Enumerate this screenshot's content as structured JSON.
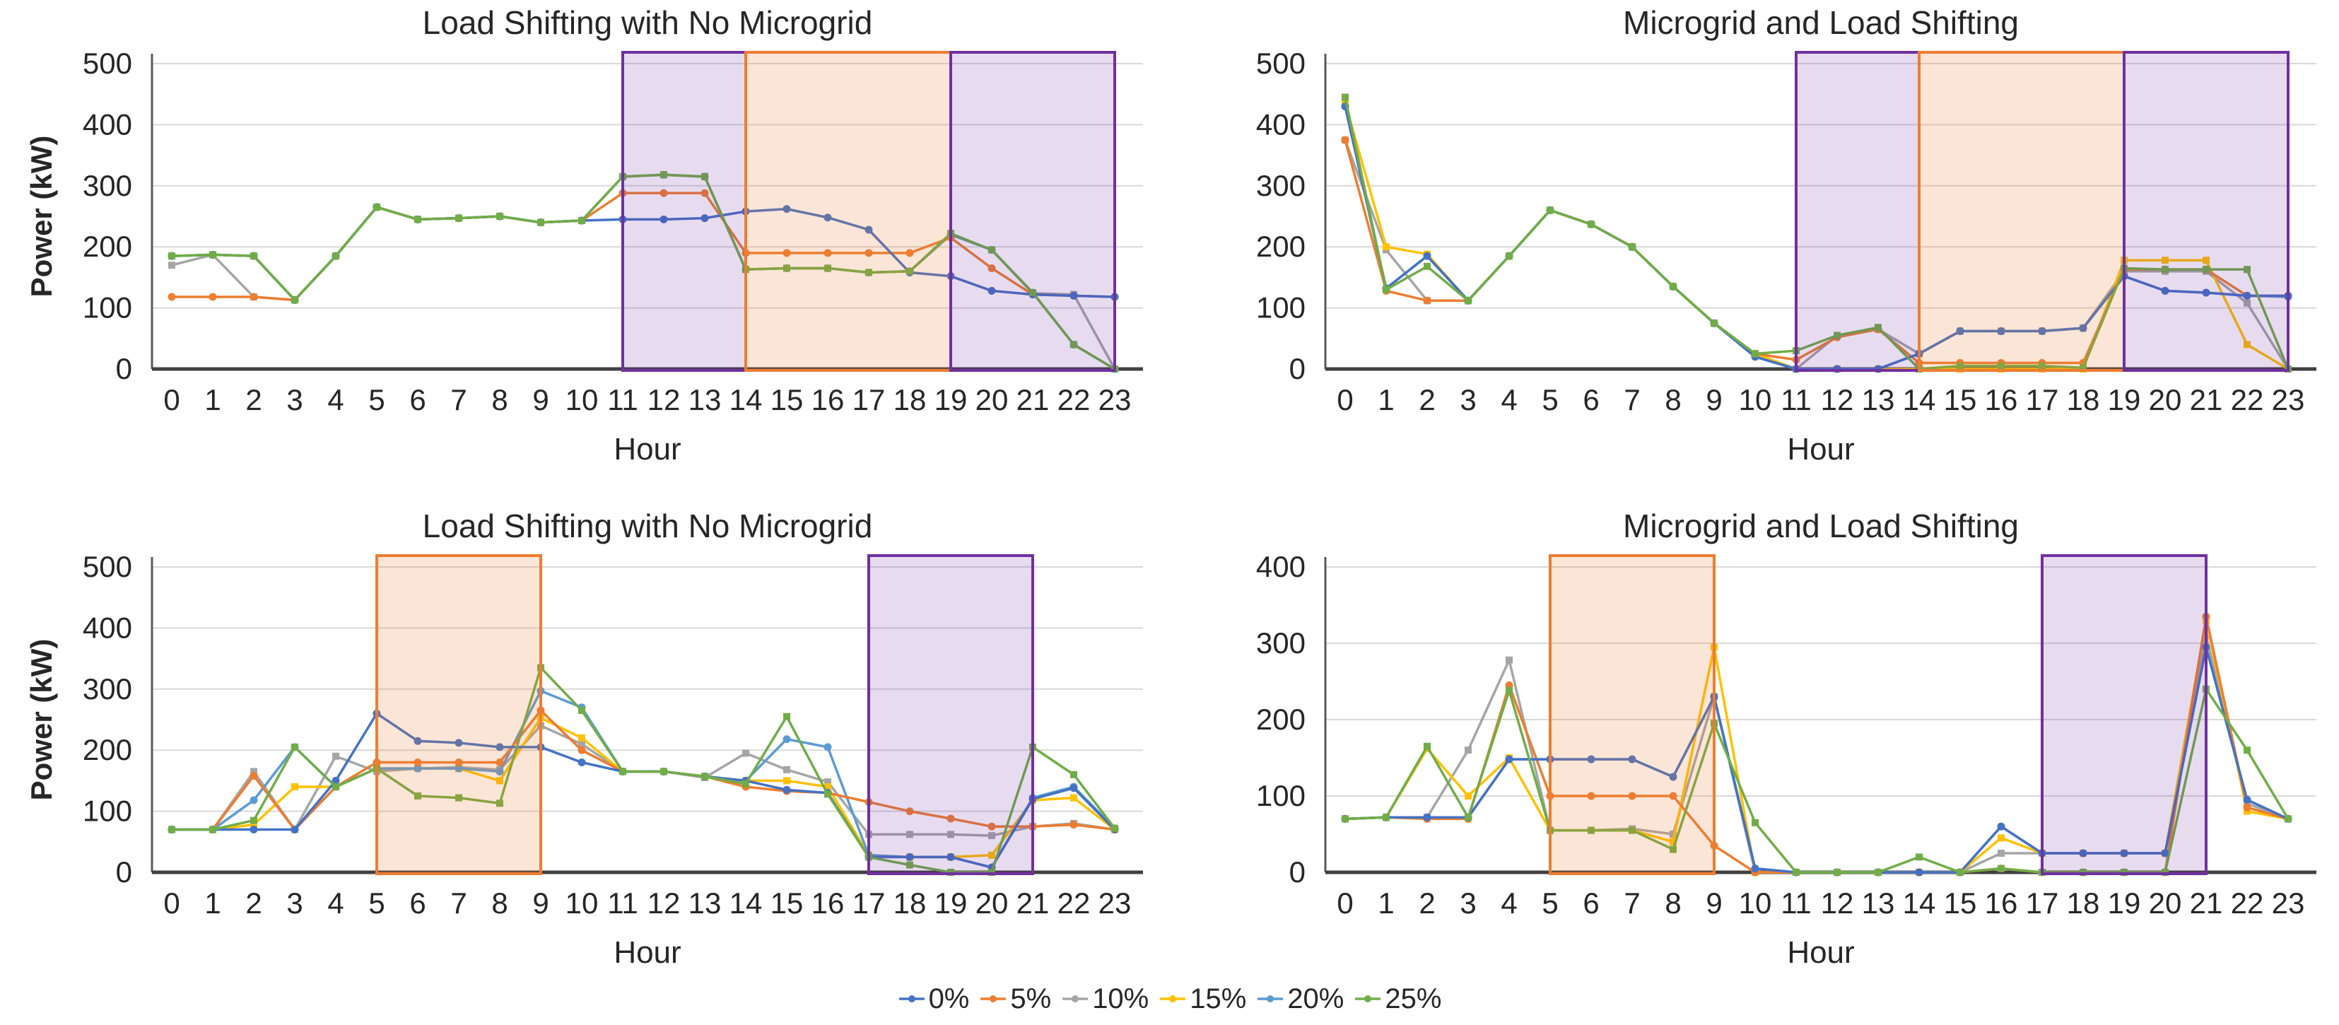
{
  "page": {
    "background": "#ffffff"
  },
  "legend": {
    "items": [
      {
        "label": "0%",
        "color": "#4472C4"
      },
      {
        "label": "5%",
        "color": "#ED7D31"
      },
      {
        "label": "10%",
        "color": "#A5A5A5"
      },
      {
        "label": "15%",
        "color": "#FFC000"
      },
      {
        "label": "20%",
        "color": "#5B9BD5"
      },
      {
        "label": "25%",
        "color": "#70AD47"
      }
    ]
  },
  "band_styles": {
    "purple": {
      "fill": "#7030A0",
      "fill_opacity": 0.17,
      "stroke": "#7030A0"
    },
    "orange": {
      "fill": "#ED7D31",
      "fill_opacity": 0.2,
      "stroke": "#ED7D31"
    }
  },
  "chart_data": [
    {
      "type": "line",
      "title": "Load Shifting with No Microgrid",
      "xlabel": "Hour",
      "ylabel": "Power (kW)",
      "ylim": [
        0,
        500
      ],
      "ytick_step": 100,
      "grid": true,
      "x": [
        0,
        1,
        2,
        3,
        4,
        5,
        6,
        7,
        8,
        9,
        10,
        11,
        12,
        13,
        14,
        15,
        16,
        17,
        18,
        19,
        20,
        21,
        22,
        23
      ],
      "bands": [
        {
          "x1": 11,
          "x2": 14,
          "kind": "purple"
        },
        {
          "x1": 14,
          "x2": 19,
          "kind": "orange"
        },
        {
          "x1": 19,
          "x2": 23,
          "kind": "purple"
        }
      ],
      "series": [
        {
          "name": "0%",
          "values": [
            185,
            187,
            185,
            113,
            185,
            265,
            245,
            247,
            250,
            240,
            243,
            245,
            245,
            247,
            258,
            262,
            248,
            228,
            158,
            152,
            128,
            122,
            120,
            118
          ]
        },
        {
          "name": "5%",
          "values": [
            118,
            118,
            118,
            113,
            185,
            265,
            245,
            247,
            250,
            240,
            243,
            288,
            288,
            288,
            190,
            190,
            190,
            190,
            190,
            215,
            165,
            122,
            120,
            118
          ]
        },
        {
          "name": "10%",
          "values": [
            170,
            187,
            118,
            113,
            185,
            265,
            245,
            247,
            250,
            240,
            243,
            315,
            318,
            315,
            163,
            165,
            165,
            158,
            160,
            220,
            195,
            124,
            122,
            0
          ]
        },
        {
          "name": "15%",
          "values": [
            185,
            187,
            185,
            113,
            185,
            265,
            245,
            247,
            250,
            240,
            243,
            315,
            318,
            315,
            163,
            165,
            165,
            158,
            160,
            220,
            195,
            125,
            40,
            0
          ]
        },
        {
          "name": "20%",
          "values": [
            185,
            187,
            185,
            113,
            185,
            265,
            245,
            247,
            250,
            240,
            243,
            315,
            318,
            315,
            163,
            165,
            165,
            158,
            160,
            220,
            195,
            125,
            40,
            0
          ]
        },
        {
          "name": "25%",
          "values": [
            185,
            187,
            185,
            113,
            185,
            265,
            245,
            247,
            250,
            240,
            243,
            315,
            318,
            315,
            163,
            165,
            165,
            158,
            160,
            222,
            195,
            125,
            40,
            0
          ]
        }
      ]
    },
    {
      "type": "line",
      "title": "Microgrid and Load Shifting",
      "xlabel": "Hour",
      "ylabel": "",
      "ylim": [
        0,
        500
      ],
      "ytick_step": 100,
      "grid": true,
      "x": [
        0,
        1,
        2,
        3,
        4,
        5,
        6,
        7,
        8,
        9,
        10,
        11,
        12,
        13,
        14,
        15,
        16,
        17,
        18,
        19,
        20,
        21,
        22,
        23
      ],
      "bands": [
        {
          "x1": 11,
          "x2": 14,
          "kind": "purple"
        },
        {
          "x1": 14,
          "x2": 19,
          "kind": "orange"
        },
        {
          "x1": 19,
          "x2": 23,
          "kind": "purple"
        }
      ],
      "series": [
        {
          "name": "0%",
          "values": [
            430,
            132,
            185,
            112,
            185,
            260,
            237,
            200,
            135,
            75,
            20,
            0,
            0,
            0,
            25,
            62,
            62,
            62,
            67,
            152,
            128,
            125,
            120,
            120
          ]
        },
        {
          "name": "5%",
          "values": [
            375,
            128,
            112,
            112,
            185,
            260,
            237,
            200,
            135,
            75,
            25,
            15,
            52,
            65,
            10,
            10,
            10,
            10,
            10,
            163,
            163,
            163,
            120,
            120
          ]
        },
        {
          "name": "10%",
          "values": [
            375,
            195,
            112,
            112,
            185,
            260,
            237,
            200,
            135,
            75,
            25,
            0,
            55,
            65,
            25,
            62,
            62,
            62,
            67,
            160,
            160,
            160,
            108,
            0
          ]
        },
        {
          "name": "15%",
          "values": [
            435,
            200,
            188,
            112,
            185,
            260,
            237,
            200,
            135,
            75,
            25,
            0,
            0,
            0,
            0,
            0,
            0,
            0,
            0,
            178,
            178,
            178,
            40,
            0
          ]
        },
        {
          "name": "20%",
          "values": [
            430,
            132,
            185,
            112,
            185,
            260,
            237,
            200,
            135,
            75,
            20,
            0,
            0,
            0,
            25,
            62,
            62,
            62,
            67,
            152,
            128,
            125,
            120,
            118
          ]
        },
        {
          "name": "25%",
          "values": [
            445,
            130,
            168,
            112,
            185,
            260,
            237,
            200,
            135,
            75,
            25,
            30,
            55,
            68,
            0,
            5,
            5,
            5,
            2,
            165,
            163,
            163,
            163,
            0
          ]
        }
      ]
    },
    {
      "type": "line",
      "title": "Load Shifting with No Microgrid",
      "xlabel": "Hour",
      "ylabel": "Power (kW)",
      "ylim": [
        0,
        500
      ],
      "ytick_step": 100,
      "grid": true,
      "x": [
        0,
        1,
        2,
        3,
        4,
        5,
        6,
        7,
        8,
        9,
        10,
        11,
        12,
        13,
        14,
        15,
        16,
        17,
        18,
        19,
        20,
        21,
        22,
        23
      ],
      "bands": [
        {
          "x1": 5,
          "x2": 9,
          "kind": "orange"
        },
        {
          "x1": 17,
          "x2": 21,
          "kind": "purple"
        }
      ],
      "series": [
        {
          "name": "0%",
          "values": [
            70,
            70,
            70,
            70,
            150,
            260,
            215,
            212,
            205,
            205,
            180,
            165,
            165,
            157,
            150,
            135,
            130,
            25,
            25,
            25,
            8,
            120,
            138,
            70
          ]
        },
        {
          "name": "5%",
          "values": [
            70,
            70,
            158,
            70,
            140,
            180,
            180,
            180,
            180,
            265,
            200,
            165,
            165,
            157,
            140,
            133,
            130,
            115,
            100,
            88,
            75,
            75,
            78,
            70
          ]
        },
        {
          "name": "10%",
          "values": [
            70,
            70,
            165,
            70,
            190,
            165,
            170,
            172,
            168,
            240,
            210,
            165,
            165,
            155,
            195,
            168,
            148,
            62,
            62,
            62,
            60,
            75,
            80,
            70
          ]
        },
        {
          "name": "15%",
          "values": [
            70,
            70,
            78,
            140,
            140,
            170,
            170,
            170,
            150,
            253,
            220,
            165,
            165,
            157,
            150,
            150,
            140,
            28,
            25,
            25,
            28,
            118,
            122,
            70
          ]
        },
        {
          "name": "20%",
          "values": [
            70,
            70,
            118,
            205,
            140,
            170,
            170,
            170,
            165,
            297,
            270,
            165,
            165,
            157,
            150,
            218,
            205,
            28,
            25,
            25,
            8,
            122,
            140,
            72
          ]
        },
        {
          "name": "25%",
          "values": [
            70,
            70,
            85,
            205,
            140,
            170,
            125,
            122,
            113,
            335,
            265,
            165,
            165,
            157,
            145,
            255,
            128,
            25,
            12,
            0,
            0,
            205,
            160,
            72
          ]
        }
      ]
    },
    {
      "type": "line",
      "title": "Microgrid and Load Shifting",
      "xlabel": "Hour",
      "ylabel": "",
      "ylim": [
        0,
        400
      ],
      "ytick_step": 100,
      "grid": true,
      "x": [
        0,
        1,
        2,
        3,
        4,
        5,
        6,
        7,
        8,
        9,
        10,
        11,
        12,
        13,
        14,
        15,
        16,
        17,
        18,
        19,
        20,
        21,
        22,
        23
      ],
      "bands": [
        {
          "x1": 5,
          "x2": 9,
          "kind": "orange"
        },
        {
          "x1": 17,
          "x2": 21,
          "kind": "purple"
        }
      ],
      "series": [
        {
          "name": "0%",
          "values": [
            70,
            72,
            72,
            72,
            148,
            148,
            148,
            148,
            125,
            230,
            5,
            0,
            0,
            0,
            0,
            0,
            60,
            25,
            25,
            25,
            25,
            295,
            95,
            70
          ]
        },
        {
          "name": "5%",
          "values": [
            70,
            72,
            70,
            70,
            245,
            100,
            100,
            100,
            100,
            35,
            0,
            0,
            0,
            0,
            0,
            0,
            5,
            0,
            0,
            0,
            0,
            335,
            85,
            70
          ]
        },
        {
          "name": "10%",
          "values": [
            70,
            72,
            72,
            160,
            278,
            55,
            55,
            57,
            50,
            230,
            0,
            0,
            0,
            0,
            0,
            0,
            25,
            25,
            25,
            25,
            25,
            310,
            90,
            70
          ]
        },
        {
          "name": "15%",
          "values": [
            70,
            72,
            162,
            100,
            150,
            55,
            55,
            55,
            40,
            295,
            0,
            0,
            0,
            0,
            0,
            0,
            45,
            25,
            25,
            25,
            25,
            330,
            80,
            70
          ]
        },
        {
          "name": "20%",
          "values": [
            70,
            72,
            72,
            72,
            148,
            148,
            148,
            148,
            125,
            230,
            5,
            0,
            0,
            0,
            0,
            0,
            60,
            25,
            25,
            25,
            25,
            295,
            95,
            70
          ]
        },
        {
          "name": "25%",
          "values": [
            70,
            72,
            165,
            72,
            238,
            55,
            55,
            55,
            30,
            195,
            65,
            0,
            0,
            0,
            20,
            0,
            5,
            0,
            0,
            0,
            0,
            240,
            160,
            70
          ]
        }
      ]
    }
  ]
}
